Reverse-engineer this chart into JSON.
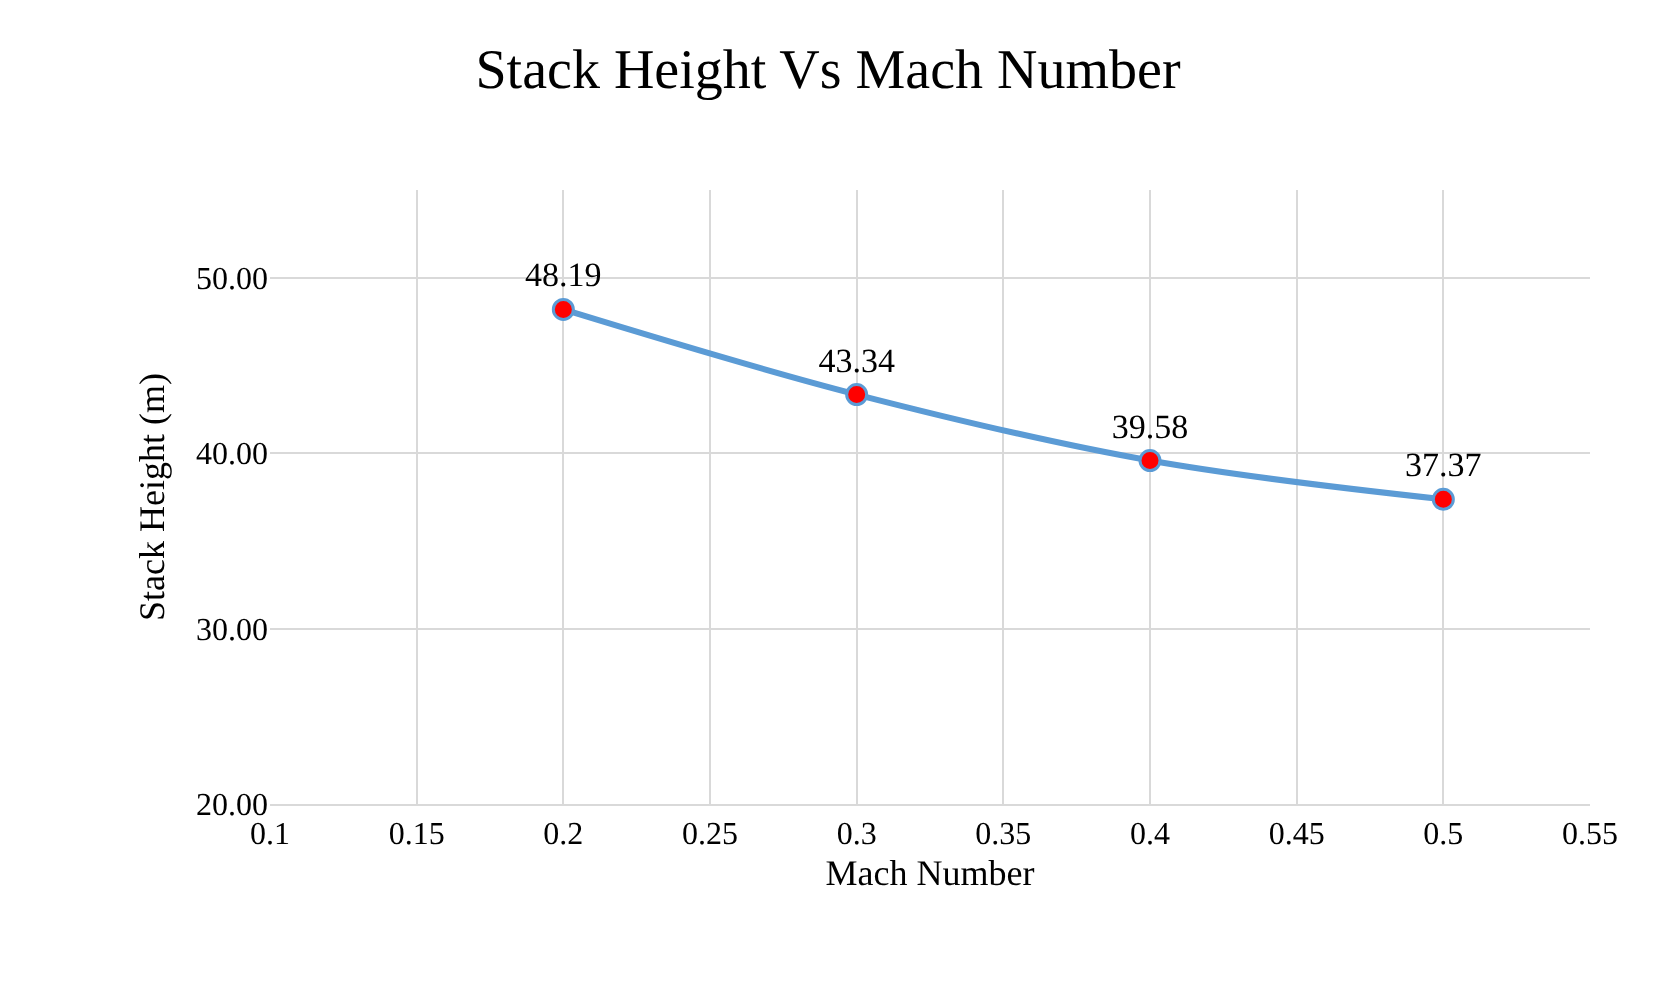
{
  "chart_data": {
    "type": "line",
    "title": "Stack Height Vs Mach Number",
    "xlabel": "Mach Number",
    "ylabel": "Stack Height (m)",
    "x": [
      0.2,
      0.3,
      0.4,
      0.5
    ],
    "series": [
      {
        "color": "#5b9bd5",
        "colors": [
          "#ff0000",
          "#ff0000",
          "#ff0000",
          "#ff0000"
        ],
        "values": [
          48.19,
          43.34,
          39.58,
          37.37
        ]
      }
    ],
    "xlim": [
      0.1,
      0.55
    ],
    "xticks": [
      0.1,
      0.15,
      0.2,
      0.25,
      0.3,
      0.35,
      0.4,
      0.45,
      0.5,
      0.55
    ],
    "ylim": [
      20,
      55
    ],
    "yticks": [
      {
        "value": 20,
        "label": "20.00"
      },
      {
        "value": 30,
        "label": "30.00"
      },
      {
        "value": 40,
        "label": "40.00"
      },
      {
        "value": 50,
        "label": "50.00"
      }
    ],
    "grid": true,
    "marker": "circle",
    "line_style": "solid",
    "data_labels": true
  }
}
